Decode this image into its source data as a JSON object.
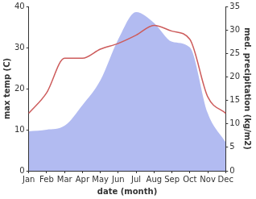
{
  "chart_data": {
    "type": "line",
    "categories": [
      "Jan",
      "Feb",
      "Mar",
      "Apr",
      "May",
      "Jun",
      "Jul",
      "Aug",
      "Sep",
      "Oct",
      "Nov",
      "Dec"
    ],
    "x_label": "date (month)",
    "y_label": "max temp (C)",
    "y2_label": "med. precipitation (kg/m2)",
    "ylim": [
      0,
      40
    ],
    "yticks": [
      0,
      10,
      20,
      30,
      40
    ],
    "y2lim": [
      0,
      35
    ],
    "y2ticks": [
      0,
      5,
      10,
      15,
      20,
      25,
      30,
      35
    ],
    "grid": false,
    "series": [
      {
        "name": "max temp",
        "type": "line",
        "color": "#cd5c5c",
        "axis": "y",
        "values": [
          14,
          19,
          27.4,
          27.4,
          29.6,
          31,
          33,
          35.4,
          34,
          32,
          18,
          14
        ]
      },
      {
        "name": "med. precipitation",
        "type": "area",
        "color": "#aab4f0",
        "axis": "y2",
        "values": [
          8.4,
          8.75,
          9.6,
          14,
          19.25,
          28,
          33.8,
          31.5,
          27.5,
          26.3,
          12.25,
          6.1
        ]
      }
    ]
  }
}
